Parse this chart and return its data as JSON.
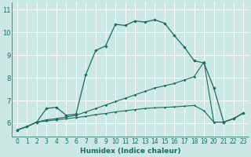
{
  "xlabel": "Humidex (Indice chaleur)",
  "background_color": "#cce8e4",
  "grid_color": "#ffffff",
  "line_color": "#1a6b5a",
  "xlim": [
    -0.5,
    23.5
  ],
  "ylim": [
    5.4,
    11.3
  ],
  "yticks": [
    6,
    7,
    8,
    9,
    10,
    11
  ],
  "xticks": [
    0,
    1,
    2,
    3,
    4,
    5,
    6,
    7,
    8,
    9,
    10,
    11,
    12,
    13,
    14,
    15,
    16,
    17,
    18,
    19,
    20,
    21,
    22,
    23
  ],
  "series1_x": [
    0,
    1,
    2,
    3,
    4,
    5,
    6,
    7,
    8,
    9,
    10,
    11,
    12,
    13,
    14,
    15,
    16,
    17,
    18,
    19,
    20,
    21,
    22,
    23
  ],
  "series1_y": [
    5.7,
    5.85,
    6.05,
    6.65,
    6.7,
    6.35,
    6.4,
    8.15,
    9.2,
    9.4,
    10.35,
    10.3,
    10.5,
    10.45,
    10.55,
    10.4,
    9.85,
    9.35,
    8.75,
    8.65,
    7.55,
    6.05,
    6.2,
    6.45
  ],
  "series2_x": [
    0,
    1,
    2,
    3,
    4,
    5,
    6,
    7,
    8,
    9,
    10,
    11,
    12,
    13,
    14,
    15,
    16,
    17,
    18,
    19,
    20,
    21,
    22,
    23
  ],
  "series2_y": [
    5.7,
    5.85,
    6.05,
    6.15,
    6.2,
    6.28,
    6.35,
    6.5,
    6.65,
    6.8,
    6.95,
    7.1,
    7.25,
    7.4,
    7.55,
    7.65,
    7.75,
    7.9,
    8.05,
    8.7,
    6.05,
    6.05,
    6.2,
    6.45
  ],
  "series3_x": [
    0,
    1,
    2,
    3,
    4,
    5,
    6,
    7,
    8,
    9,
    10,
    11,
    12,
    13,
    14,
    15,
    16,
    17,
    18,
    19,
    20,
    21,
    22,
    23
  ],
  "series3_y": [
    5.7,
    5.85,
    6.05,
    6.1,
    6.15,
    6.2,
    6.25,
    6.3,
    6.38,
    6.43,
    6.5,
    6.55,
    6.6,
    6.65,
    6.68,
    6.7,
    6.72,
    6.75,
    6.78,
    6.55,
    6.05,
    6.05,
    6.2,
    6.45
  ]
}
